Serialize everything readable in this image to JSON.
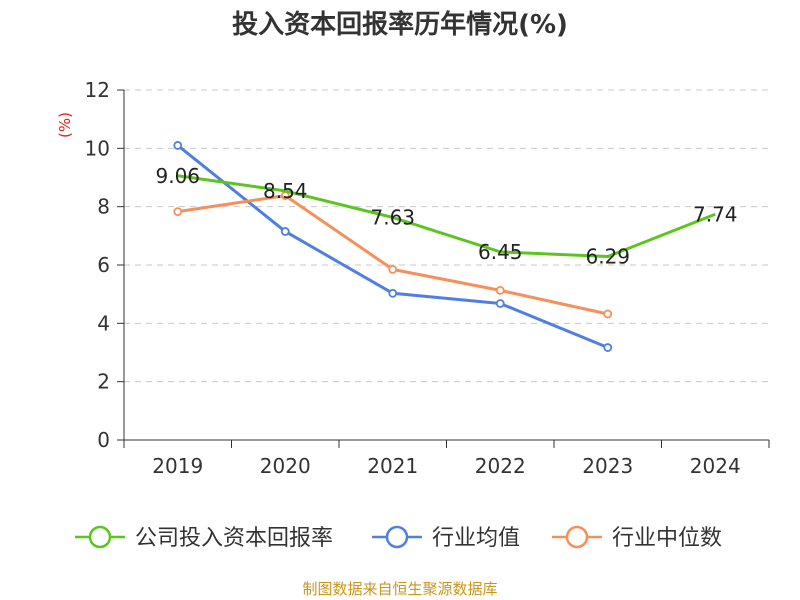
{
  "chart_data": {
    "type": "line",
    "title": "投入资本回报率历年情况(%)",
    "ylabel": "(%)",
    "xlabel": "",
    "categories": [
      "2019",
      "2020",
      "2021",
      "2022",
      "2023",
      "2024"
    ],
    "ylim": [
      0,
      12
    ],
    "yticks": [
      0,
      2,
      4,
      6,
      8,
      10,
      12
    ],
    "grid": true,
    "legend_position": "bottom",
    "series": [
      {
        "name": "公司投入资本回报率",
        "color": "#5cc41e",
        "values": [
          9.06,
          8.54,
          7.63,
          6.45,
          6.29,
          7.74
        ],
        "labels": [
          "9.06",
          "8.54",
          "7.63",
          "6.45",
          "6.29",
          "7.74"
        ]
      },
      {
        "name": "行业均值",
        "color": "#4f7fe0",
        "values": [
          10.1,
          7.15,
          5.03,
          4.68,
          3.17,
          null
        ]
      },
      {
        "name": "行业中位数",
        "color": "#f5905a",
        "values": [
          7.83,
          8.38,
          5.85,
          5.13,
          4.32,
          null
        ]
      }
    ]
  },
  "source": "制图数据来自恒生聚源数据库"
}
